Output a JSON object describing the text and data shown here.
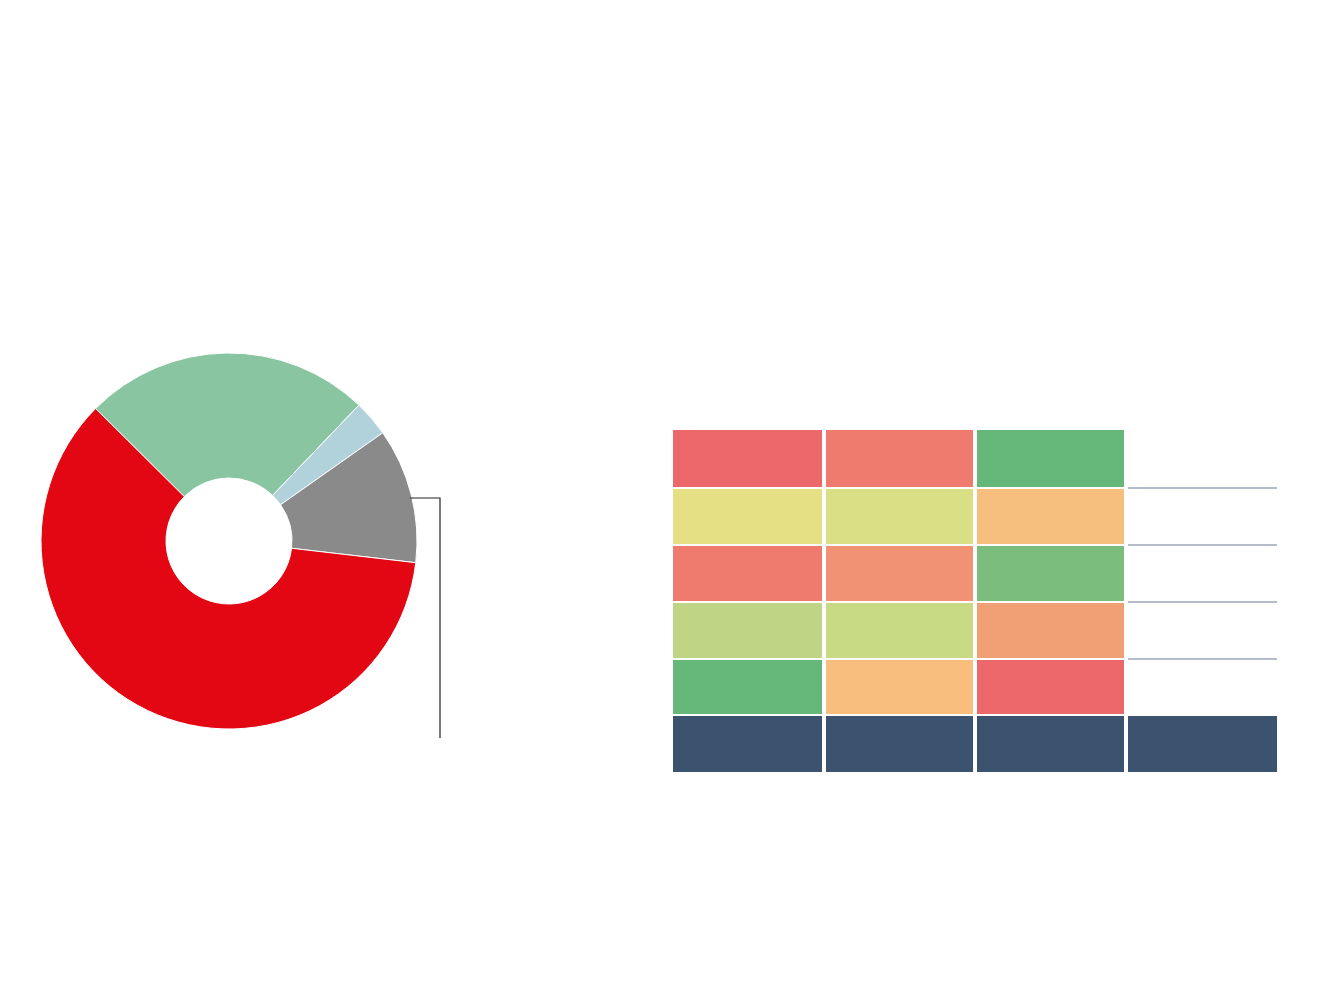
{
  "chart_data": {
    "type": "donut",
    "categories": [
      null,
      null,
      null,
      null
    ],
    "values": [
      24.7,
      3.1,
      11.6,
      60.6
    ],
    "colors": [
      "#89c5a0",
      "#b1d2db",
      "#8a8a8a",
      "#e30613"
    ]
  }
}
